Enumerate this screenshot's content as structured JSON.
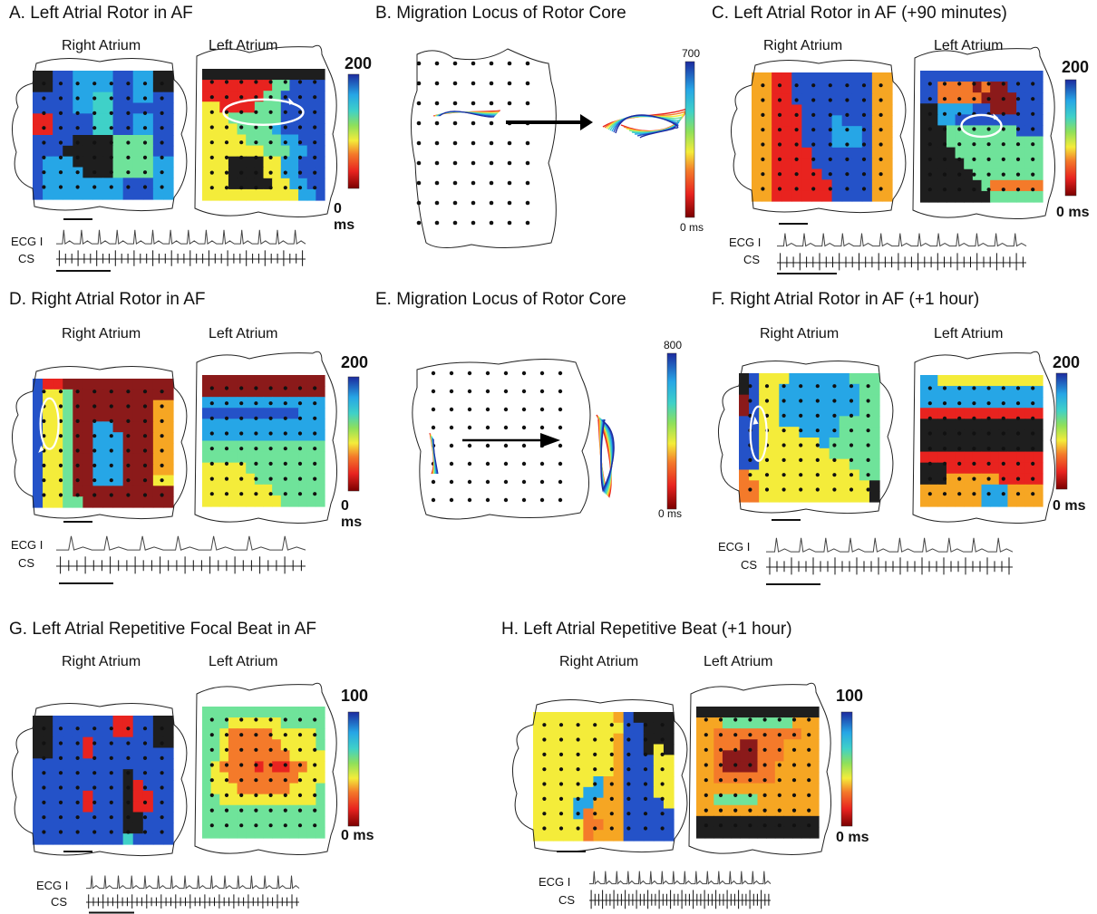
{
  "panels": {
    "A": {
      "title": "A. Left Atrial Rotor in AF",
      "right_label": "Right Atrium",
      "left_label": "Left Atrium",
      "cb_max": "200",
      "cb_min": "0 ms",
      "ecg_label": "ECG I",
      "cs_label": "CS"
    },
    "B": {
      "title": "B. Migration Locus of Rotor Core",
      "cb_max": "700",
      "cb_min": "0 ms"
    },
    "C": {
      "title": "C. Left Atrial Rotor in AF (+90 minutes)",
      "right_label": "Right Atrium",
      "left_label": "Left Atrium",
      "cb_max": "200",
      "cb_min": "0 ms",
      "ecg_label": "ECG I",
      "cs_label": "CS"
    },
    "D": {
      "title": "D. Right Atrial Rotor in AF",
      "right_label": "Right Atrium",
      "left_label": "Left Atrium",
      "cb_max": "200",
      "cb_min": "0 ms",
      "ecg_label": "ECG I",
      "cs_label": "CS"
    },
    "E": {
      "title": "E. Migration Locus of Rotor Core",
      "cb_max": "800",
      "cb_min": "0 ms"
    },
    "F": {
      "title": "F. Right Atrial Rotor in AF (+1 hour)",
      "right_label": "Right Atrium",
      "left_label": "Left Atrium",
      "cb_max": "200",
      "cb_min": "0 ms",
      "ecg_label": "ECG I",
      "cs_label": "CS"
    },
    "G": {
      "title": "G. Left Atrial Repetitive Focal Beat in AF",
      "right_label": "Right Atrium",
      "left_label": "Left Atrium",
      "cb_max": "100",
      "cb_min": "0 ms",
      "ecg_label": "ECG I",
      "cs_label": "CS"
    },
    "H": {
      "title": "H. Left Atrial Repetitive Beat (+1 hour)",
      "right_label": "Right Atrium",
      "left_label": "Left Atrium",
      "cb_max": "100",
      "cb_min": "0 ms",
      "ecg_label": "ECG I",
      "cs_label": "CS"
    }
  },
  "colors": {
    "black": "#1e1e1e",
    "darkred": "#8b1a1a",
    "red": "#e8231f",
    "orange": "#f47a2a",
    "amber": "#f6a623",
    "yellow": "#f4ec3a",
    "lime": "#b4e04a",
    "green": "#6fe39a",
    "teal": "#3fd1c8",
    "sky": "#26a6e6",
    "blue": "#2452c8",
    "navy": "#1c2a9e"
  },
  "maps": {
    "A_R": [
      "bbnnssssnnssbb",
      "bbnnssssnnssbb",
      "nnnnssttnnssnn",
      "nnnnssttnnnnnn",
      "rrnnnnttnnssnn",
      "rrnnnnttnnssnn",
      "nnnnbbbbggggnn",
      "nnnbbbbbggggnn",
      "nsssbbbbggggss",
      "nssssbbbggggss",
      "nssssssssnnnss",
      "nssssssssnnnss"
    ],
    "A_L": [
      "bbbbbbbbbbbbbb",
      "rrrrrrrrggnnnn",
      "rrrrrrrggnnnnn",
      "yyrrrrgggnnnnn",
      "yyyggggggnnnnn",
      "yyyyggggsnnnnn",
      "yyyyyggggssnnn",
      "yyyyyyygggssnn",
      "yyybbbbyyssnnn",
      "yyybbbbyyssnnn",
      "yyybbbbbyyssnn",
      "yyyyyyyyyyyssn"
    ],
    "C_R": [
      "aarrnnnnnnnnaa",
      "aarrnnnnnnnnaa",
      "aarrnnnnnnnnaa",
      "aarrrnnnnnnnaa",
      "aarrrnnnsnnnaa",
      "aarrrnnnsssnaa",
      "aarrrnnnsssnaa",
      "aarrrrnnnnnnaa",
      "aarrrrnnnnnnaa",
      "aarrrrrnnnnnaa",
      "aarrrrrrnnnnaa",
      "aarrrrrrnnnnaa"
    ],
    "C_L": [
      "nnnnnnnnnnnnnn",
      "nnoooododdnnnn",
      "nnoooooddddnnn",
      "bbssssnndddnnn",
      "bbssnnnnnnnnnn",
      "bbbggggggggnnn",
      "bbbggggggggggg",
      "bbbbggggggggggg",
      "bbbbbggggggggg",
      "bbbbbbgggggggg",
      "bbbbbbbgoooooo",
      "bbbbbbbbgggggg"
    ],
    "D_R": [
      "nrrddddddddddd",
      "nyygddddddddddd",
      "nyygddddddddaa",
      "nyygddddddddaa",
      "nyygddssddddaa",
      "nyygddsssdddaa",
      "nyygddsssdddaa",
      "nyygddsssdddaa",
      "nyygddsssdddaa",
      "nyygddsssdddyy",
      "nyygdddddddddd",
      "nyyggddddddddd"
    ],
    "D_L": [
      "dddddddddddddd",
      "dddddddddddddd",
      "ssssssssssssss",
      "nnnnnnnnnnnsss",
      "ssssssssssssss",
      "ssssssssssssss",
      "gggggggggggggg",
      "gggggggggggggg",
      "yyyyyggggggggg",
      "yyyyyygggggggg",
      "yyyyyyyygggggg",
      "yyyyyyyyyggggg"
    ],
    "F_R": [
      "bnyyyssssssggg",
      "bnyyssssssssgg",
      "dnyyssssssssgg",
      "dnyyssssssssgg",
      "nnyyssssssgggg",
      "nnyyyyssssgggg",
      "nnyyyyyysggggg",
      "nnyyyyyyyggggg",
      "nnyyyyyyyyyggg",
      "oyyyyyyyyyyygg",
      "ooyyyyyyyyyyyb",
      "ooyyyyyyyyyyyb"
    ],
    "F_L": [
      "ssyyyyyyyyyyyy",
      "ssssssssssssss",
      "ssssssssssssss",
      "rrrrrrrrrrrrrr",
      "bbbbbbbbbbbbbb",
      "bbbbbbbbbbbbbb",
      "bbbbbbbbbbbbbb",
      "rrrrrrrrrrrrrr",
      "bbbrrrrrrrrrrr",
      "bbbaaaaaarrrrr",
      "aaaaaaasssaaaa",
      "aaaaaaasssaaaa"
    ],
    "G_R": [
      "bbnnnnnnrrnnbb",
      "bbnnnnnnrrnnbb",
      "bbnnnrnnnnnnbb",
      "bbnnnrnnnnnnnn",
      "nnnnnnnnnnnnnn",
      "nnnnnnnnnbnnnn",
      "nnnnnnnnnbrnnn",
      "nnnnnrnnnbrrnn",
      "nnnnnrnnnbrrnn",
      "nnnnnnnnnbbnnn",
      "nnnnnnnnnbbnnn",
      "nnnnnnnnntnnnn"
    ],
    "G_L": [
      "gggggggggggggg",
      "gggyyyyyyggggg",
      "ggyoooooyyyyyg",
      "ggyooooooyyyyg",
      "ggyoooooooyyyy",
      "gyoooororrooyy",
      "gyyooooooooyyy",
      "gyyyooooooyyyg",
      "ggyyyyyyyyyyyg",
      "gggggggggggggg",
      "gggggggggggggg",
      "gggggggggggggg"
    ],
    "H_R": [
      "yyyyyyyyanbbbb",
      "yyyyyyyyynnbbb",
      "yyyyyyyyannbbb",
      "yyyyyyyyannbyb",
      "yyyyyyyyannnyy",
      "yyyyyyyyannnyy",
      "yyyyyysaannnyy",
      "yyyyyssaannnyy",
      "yyyyssaaannnny",
      "yyyysoaaannnnn",
      "yyyyyooaannnnn",
      "yyyyyoaaannnnn"
    ],
    "H_L": [
      "bbbbbbbbbbbbbb",
      "aaaggggggggaaa",
      "aaooooooooooaa",
      "aaoooddoooaaaa",
      "aaoddddoooaaaa",
      "aaoddddooaaaaa",
      "aaoooooooaaaaa",
      "aaaaaaaaaaaaaa",
      "aagggggaaaaaaa",
      "aaaaaaaaaaaaaa",
      "bbbbbbbbbbbbbb",
      "bbbbbbbbbbbbbb"
    ]
  }
}
